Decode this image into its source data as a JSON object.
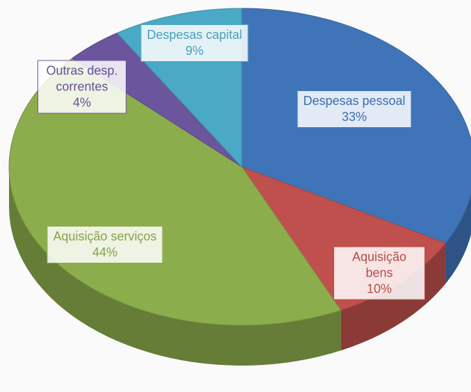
{
  "chart_data": {
    "type": "pie",
    "categories": [
      "Despesas pessoal",
      "Aquisição bens",
      "Aquisição serviços",
      "Outras desp. correntes",
      "Despesas capital"
    ],
    "values": [
      33,
      10,
      44,
      4,
      9
    ],
    "value_labels": [
      "33%",
      "10%",
      "44%",
      "4%",
      "9%"
    ],
    "colors": [
      "#3f74b8",
      "#c0504d",
      "#8cad4c",
      "#6b559c",
      "#4aa9c5"
    ]
  }
}
